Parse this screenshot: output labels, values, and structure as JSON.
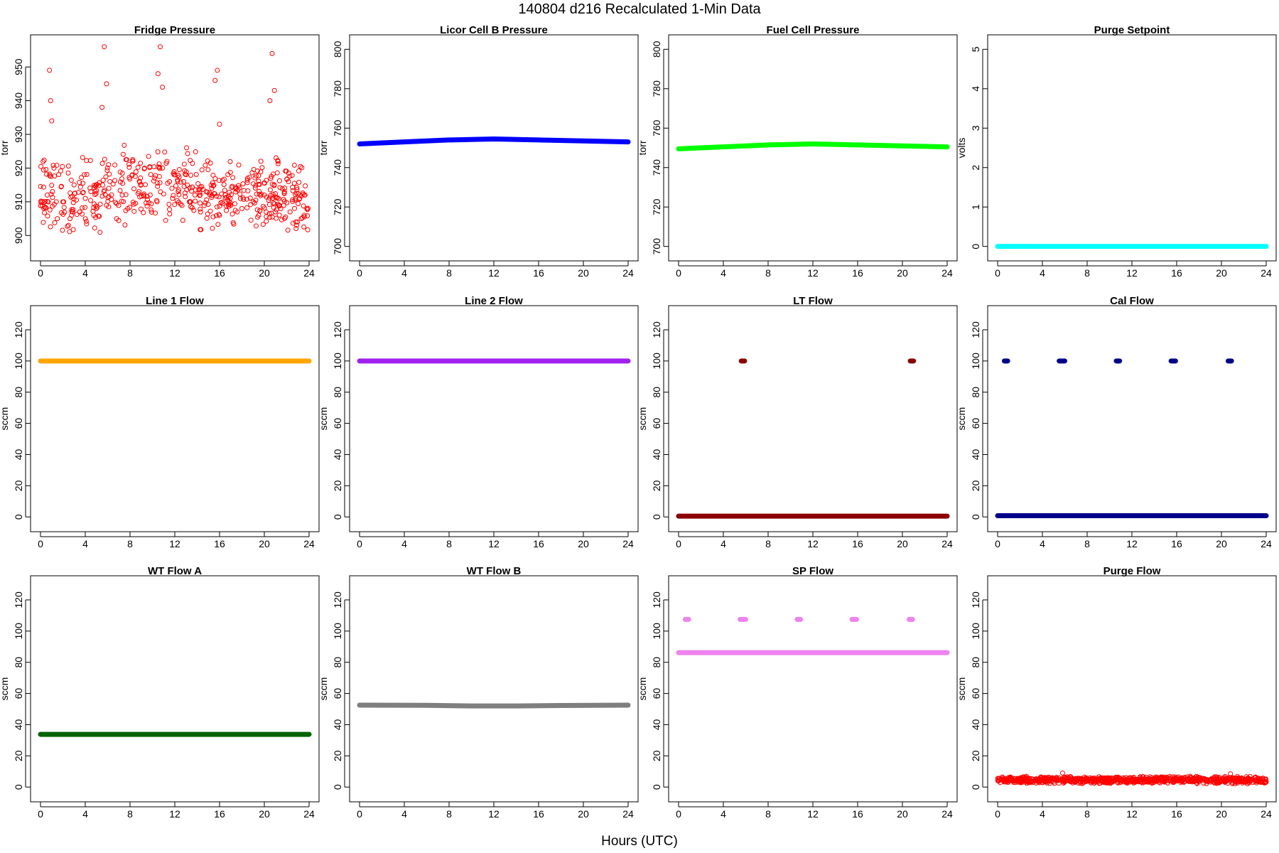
{
  "figure": {
    "title": "140804   d216   Recalculated 1-Min Data",
    "xlabel": "Hours (UTC)"
  },
  "chart_data": [
    {
      "type": "scatter",
      "title": "Fridge Pressure",
      "ylabel": "torr",
      "xlim": [
        0,
        24
      ],
      "ylim": [
        895,
        957
      ],
      "xticks": [
        0,
        4,
        8,
        12,
        16,
        20,
        24
      ],
      "yticks": [
        900,
        910,
        920,
        930,
        940,
        950
      ],
      "color": "#ff0000",
      "marker": "open-circle",
      "description": "noisy baseline 900-925 torr with spikes to ~930-956 torr near hours 0.7, 5.7, 10.7, 15.7, 20.7",
      "series": [
        {
          "points": [
            [
              0.3,
              908
            ],
            [
              0.6,
              912
            ],
            [
              0.8,
              949
            ],
            [
              0.9,
              940
            ],
            [
              1.0,
              934
            ],
            [
              1.2,
              920
            ],
            [
              1.5,
              905
            ],
            [
              2.0,
              910
            ],
            [
              2.5,
              903
            ],
            [
              3.0,
              915
            ],
            [
              3.5,
              907
            ],
            [
              4.0,
              911
            ],
            [
              4.5,
              913
            ],
            [
              5.0,
              908
            ],
            [
              5.5,
              938
            ],
            [
              5.7,
              956
            ],
            [
              5.9,
              945
            ],
            [
              6.2,
              916
            ],
            [
              6.8,
              905
            ],
            [
              7.3,
              912
            ],
            [
              7.8,
              908
            ],
            [
              8.2,
              918
            ],
            [
              8.8,
              913
            ],
            [
              9.3,
              920
            ],
            [
              9.8,
              912
            ],
            [
              10.2,
              917
            ],
            [
              10.5,
              948
            ],
            [
              10.7,
              956
            ],
            [
              10.9,
              944
            ],
            [
              11.3,
              922
            ],
            [
              11.8,
              911
            ],
            [
              12.3,
              913
            ],
            [
              12.8,
              916
            ],
            [
              13.3,
              910
            ],
            [
              13.8,
              912
            ],
            [
              14.3,
              907
            ],
            [
              14.8,
              913
            ],
            [
              15.3,
              914
            ],
            [
              15.6,
              946
            ],
            [
              15.8,
              949
            ],
            [
              16.0,
              933
            ],
            [
              16.5,
              912
            ],
            [
              17.0,
              909
            ],
            [
              17.5,
              914
            ],
            [
              18.0,
              908
            ],
            [
              18.5,
              917
            ],
            [
              19.0,
              910
            ],
            [
              19.5,
              906
            ],
            [
              20.0,
              912
            ],
            [
              20.5,
              940
            ],
            [
              20.7,
              954
            ],
            [
              20.9,
              943
            ],
            [
              21.3,
              909
            ],
            [
              21.8,
              913
            ],
            [
              22.3,
              907
            ],
            [
              22.8,
              911
            ],
            [
              23.3,
              905
            ],
            [
              23.8,
              908
            ]
          ]
        }
      ]
    },
    {
      "type": "scatter",
      "title": "Licor Cell B Pressure",
      "ylabel": "torr",
      "xlim": [
        0,
        24
      ],
      "ylim": [
        697,
        803
      ],
      "xticks": [
        0,
        4,
        8,
        12,
        16,
        20,
        24
      ],
      "yticks": [
        700,
        720,
        740,
        760,
        780,
        800
      ],
      "color": "#0000ff",
      "marker": "filled-band",
      "series": [
        {
          "points": [
            [
              0,
              752
            ],
            [
              4,
              753
            ],
            [
              8,
              754
            ],
            [
              12,
              754.5
            ],
            [
              16,
              754
            ],
            [
              20,
              753.5
            ],
            [
              24,
              753
            ]
          ]
        }
      ]
    },
    {
      "type": "scatter",
      "title": "Fuel Cell Pressure",
      "ylabel": "torr",
      "xlim": [
        0,
        24
      ],
      "ylim": [
        697,
        803
      ],
      "xticks": [
        0,
        4,
        8,
        12,
        16,
        20,
        24
      ],
      "yticks": [
        700,
        720,
        740,
        760,
        780,
        800
      ],
      "color": "#00ff00",
      "marker": "filled-band",
      "series": [
        {
          "points": [
            [
              0,
              749.5
            ],
            [
              4,
              750.5
            ],
            [
              8,
              751.5
            ],
            [
              12,
              752
            ],
            [
              16,
              751.5
            ],
            [
              20,
              751
            ],
            [
              24,
              750.5
            ]
          ]
        }
      ]
    },
    {
      "type": "scatter",
      "title": "Purge Setpoint",
      "ylabel": "volts",
      "xlim": [
        0,
        24
      ],
      "ylim": [
        -0.15,
        5.15
      ],
      "xticks": [
        0,
        4,
        8,
        12,
        16,
        20,
        24
      ],
      "yticks": [
        0,
        1,
        2,
        3,
        4,
        5
      ],
      "color": "#00ffff",
      "marker": "filled-band",
      "series": [
        {
          "points": [
            [
              0,
              0
            ],
            [
              24,
              0
            ]
          ]
        }
      ]
    },
    {
      "type": "scatter",
      "title": "Line 1 Flow",
      "ylabel": "sccm",
      "xlim": [
        0,
        24
      ],
      "ylim": [
        -4,
        130
      ],
      "xticks": [
        0,
        4,
        8,
        12,
        16,
        20,
        24
      ],
      "yticks": [
        0,
        20,
        40,
        60,
        80,
        100,
        120
      ],
      "color": "#ffa500",
      "marker": "filled-band",
      "series": [
        {
          "points": [
            [
              0,
              100
            ],
            [
              24,
              100
            ]
          ]
        }
      ]
    },
    {
      "type": "scatter",
      "title": "Line 2 Flow",
      "ylabel": "sccm",
      "xlim": [
        0,
        24
      ],
      "ylim": [
        -4,
        130
      ],
      "xticks": [
        0,
        4,
        8,
        12,
        16,
        20,
        24
      ],
      "yticks": [
        0,
        20,
        40,
        60,
        80,
        100,
        120
      ],
      "color": "#a020f0",
      "marker": "filled-band",
      "series": [
        {
          "points": [
            [
              0,
              100
            ],
            [
              24,
              100
            ]
          ]
        }
      ]
    },
    {
      "type": "scatter",
      "title": "LT Flow",
      "ylabel": "sccm",
      "xlim": [
        0,
        24
      ],
      "ylim": [
        -4,
        130
      ],
      "xticks": [
        0,
        4,
        8,
        12,
        16,
        20,
        24
      ],
      "yticks": [
        0,
        20,
        40,
        60,
        80,
        100,
        120
      ],
      "color": "#8b0000",
      "marker": "filled-band",
      "series": [
        {
          "points": [
            [
              0,
              0.5
            ],
            [
              24,
              0.5
            ]
          ]
        },
        {
          "points": [
            [
              5.6,
              100
            ],
            [
              5.9,
              100
            ]
          ]
        },
        {
          "points": [
            [
              20.7,
              100
            ],
            [
              21.0,
              100
            ]
          ]
        }
      ]
    },
    {
      "type": "scatter",
      "title": "Cal Flow",
      "ylabel": "sccm",
      "xlim": [
        0,
        24
      ],
      "ylim": [
        -4,
        130
      ],
      "xticks": [
        0,
        4,
        8,
        12,
        16,
        20,
        24
      ],
      "yticks": [
        0,
        20,
        40,
        60,
        80,
        100,
        120
      ],
      "color": "#00008b",
      "marker": "filled-band",
      "series": [
        {
          "points": [
            [
              0,
              0.8
            ],
            [
              24,
              0.8
            ]
          ]
        },
        {
          "points": [
            [
              0.6,
              100
            ],
            [
              0.9,
              100
            ]
          ]
        },
        {
          "points": [
            [
              5.5,
              100
            ],
            [
              6.0,
              100
            ]
          ]
        },
        {
          "points": [
            [
              10.6,
              100
            ],
            [
              10.9,
              100
            ]
          ]
        },
        {
          "points": [
            [
              15.5,
              100
            ],
            [
              15.9,
              100
            ]
          ]
        },
        {
          "points": [
            [
              20.6,
              100
            ],
            [
              20.9,
              100
            ]
          ]
        }
      ]
    },
    {
      "type": "scatter",
      "title": "WT Flow A",
      "ylabel": "sccm",
      "xlim": [
        0,
        24
      ],
      "ylim": [
        -4,
        130
      ],
      "xticks": [
        0,
        4,
        8,
        12,
        16,
        20,
        24
      ],
      "yticks": [
        0,
        20,
        40,
        60,
        80,
        100,
        120
      ],
      "color": "#006400",
      "marker": "filled-band",
      "series": [
        {
          "points": [
            [
              0,
              33.8
            ],
            [
              24,
              33.8
            ]
          ]
        }
      ]
    },
    {
      "type": "scatter",
      "title": "WT Flow B",
      "ylabel": "sccm",
      "xlim": [
        0,
        24
      ],
      "ylim": [
        -4,
        130
      ],
      "xticks": [
        0,
        4,
        8,
        12,
        16,
        20,
        24
      ],
      "yticks": [
        0,
        20,
        40,
        60,
        80,
        100,
        120
      ],
      "color": "#7f7f7f",
      "marker": "filled-band",
      "series": [
        {
          "points": [
            [
              0,
              52.5
            ],
            [
              6,
              52.4
            ],
            [
              10,
              52
            ],
            [
              14,
              52
            ],
            [
              18,
              52.3
            ],
            [
              24,
              52.5
            ]
          ]
        }
      ]
    },
    {
      "type": "scatter",
      "title": "SP Flow",
      "ylabel": "sccm",
      "xlim": [
        0,
        24
      ],
      "ylim": [
        -4,
        130
      ],
      "xticks": [
        0,
        4,
        8,
        12,
        16,
        20,
        24
      ],
      "yticks": [
        0,
        20,
        40,
        60,
        80,
        100,
        120
      ],
      "color": "#ee82ee",
      "marker": "filled-band",
      "series": [
        {
          "points": [
            [
              0,
              86.2
            ],
            [
              24,
              86.2
            ]
          ]
        },
        {
          "points": [
            [
              0.6,
              107.5
            ],
            [
              0.9,
              107.5
            ]
          ]
        },
        {
          "points": [
            [
              5.5,
              107.5
            ],
            [
              6.0,
              107.5
            ]
          ]
        },
        {
          "points": [
            [
              10.6,
              107.5
            ],
            [
              10.9,
              107.5
            ]
          ]
        },
        {
          "points": [
            [
              15.5,
              107.5
            ],
            [
              15.9,
              107.5
            ]
          ]
        },
        {
          "points": [
            [
              20.6,
              107.5
            ],
            [
              20.9,
              107.5
            ]
          ]
        }
      ]
    },
    {
      "type": "scatter",
      "title": "Purge Flow",
      "ylabel": "sccm",
      "xlim": [
        0,
        24
      ],
      "ylim": [
        -4,
        130
      ],
      "xticks": [
        0,
        4,
        8,
        12,
        16,
        20,
        24
      ],
      "yticks": [
        0,
        20,
        40,
        60,
        80,
        100,
        120
      ],
      "color": "#ff0000",
      "marker": "open-circle",
      "description": "noisy band ~2-7 sccm with occasional values up to ~9 sccm",
      "series": [
        {
          "points": [
            [
              0.5,
              4
            ],
            [
              2,
              3.5
            ],
            [
              4,
              4.5
            ],
            [
              5.8,
              9
            ],
            [
              8,
              4
            ],
            [
              10,
              5
            ],
            [
              12,
              4
            ],
            [
              14,
              5.5
            ],
            [
              16,
              4
            ],
            [
              18,
              6
            ],
            [
              20,
              4.5
            ],
            [
              20.8,
              8.5
            ],
            [
              22,
              4
            ],
            [
              24,
              3.5
            ]
          ]
        }
      ]
    }
  ]
}
